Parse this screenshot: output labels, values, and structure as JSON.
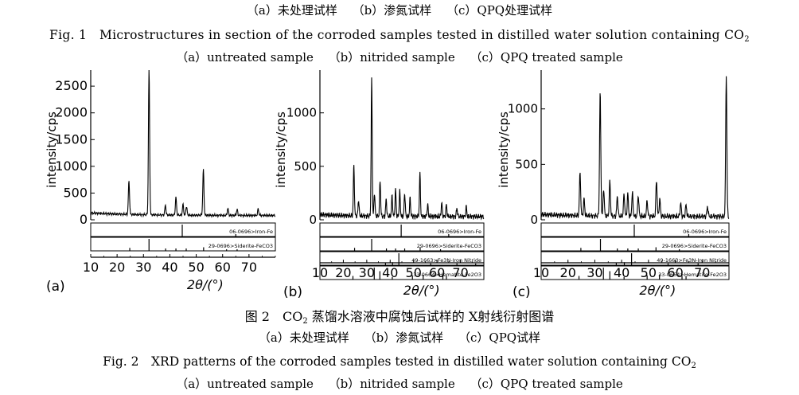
{
  "captions": {
    "fig1_panels_cn": [
      "（a）未处理试样",
      "（b）渗氮试样",
      "（c）QPQ处理试样"
    ],
    "fig1_title": "Fig. 1　Microstructures in section of the corroded samples tested in distilled water solution containing CO",
    "fig1_title_sub": "2",
    "fig1_panels_en": [
      "（a）untreated sample",
      "（b）nitrided sample",
      "（c）QPQ treated sample"
    ],
    "fig2_title_cn": "图 2　CO",
    "fig2_title_cn_sub": "2",
    "fig2_title_cn_rest": " 蒸馏水溶液中腐蚀后试样的 X射线衍射图谱",
    "fig2_panels_cn": [
      "（a）未处理试样",
      "（b）渗氮试样",
      "（c）QPQ试样"
    ],
    "fig2_title": "Fig. 2　XRD patterns of the corroded samples tested in distilled water solution containing CO",
    "fig2_title_sub": "2",
    "fig2_panels_en": [
      "（a）untreated sample",
      "（b）nitrided sample",
      "（c）QPQ treated sample"
    ]
  },
  "chart_data": [
    {
      "type": "line",
      "panel_label": "(a)",
      "xlabel": "2θ/(°)",
      "ylabel": "intensity/cps",
      "xlim": [
        10,
        80
      ],
      "ylim": [
        0,
        2800
      ],
      "xticks": [
        10,
        20,
        30,
        40,
        50,
        60,
        70
      ],
      "yticks": [
        0,
        500,
        1000,
        1500,
        2000,
        2500
      ],
      "series": [
        {
          "baseline": 80,
          "peaks": [
            [
              24.5,
              620
            ],
            [
              32.1,
              2720
            ],
            [
              38.3,
              180
            ],
            [
              42.3,
              330
            ],
            [
              45.0,
              200
            ],
            [
              46.3,
              170
            ],
            [
              52.7,
              850
            ],
            [
              62.0,
              130
            ],
            [
              65.5,
              110
            ],
            [
              73.5,
              120
            ]
          ]
        }
      ],
      "reference_bars": [
        {
          "label": "06-0696>Iron-Fe",
          "lines": [
            [
              44.7,
              1.0
            ],
            [
              65.0,
              0.2
            ]
          ]
        },
        {
          "label": "29-0696>Siderite-FeCO3",
          "lines": [
            [
              24.8,
              0.25
            ],
            [
              32.1,
              1.0
            ],
            [
              38.4,
              0.2
            ],
            [
              42.3,
              0.2
            ],
            [
              46.2,
              0.2
            ],
            [
              52.8,
              0.3
            ],
            [
              61.5,
              0.12
            ],
            [
              65.5,
              0.1
            ]
          ]
        }
      ]
    },
    {
      "type": "line",
      "panel_label": "(b)",
      "xlabel": "2θ/(°)",
      "ylabel": "intensity/cps",
      "xlim": [
        10,
        80
      ],
      "ylim": [
        0,
        1400
      ],
      "xticks": [
        10,
        20,
        30,
        40,
        50,
        60,
        70
      ],
      "yticks": [
        0,
        500,
        1000
      ],
      "series": [
        {
          "baseline": 30,
          "peaks": [
            [
              24.5,
              470
            ],
            [
              26.5,
              150
            ],
            [
              32.1,
              1280
            ],
            [
              33.3,
              220
            ],
            [
              35.7,
              330
            ],
            [
              38.3,
              160
            ],
            [
              40.8,
              190
            ],
            [
              42.3,
              250
            ],
            [
              44.1,
              230
            ],
            [
              46.2,
              220
            ],
            [
              48.5,
              170
            ],
            [
              52.7,
              400
            ],
            [
              56.0,
              110
            ],
            [
              62.0,
              130
            ],
            [
              64.0,
              110
            ],
            [
              68.5,
              80
            ],
            [
              72.5,
              90
            ]
          ]
        }
      ],
      "reference_bars": [
        {
          "label": "06-0696>Iron-Fe",
          "lines": [
            [
              44.7,
              1.0
            ],
            [
              65.0,
              0.2
            ]
          ]
        },
        {
          "label": "29-0696>Siderite-FeCO3",
          "lines": [
            [
              24.8,
              0.25
            ],
            [
              32.1,
              1.0
            ],
            [
              38.4,
              0.2
            ],
            [
              42.3,
              0.2
            ],
            [
              46.2,
              0.2
            ],
            [
              52.8,
              0.3
            ],
            [
              61.5,
              0.12
            ]
          ]
        },
        {
          "label": "49-1663>Fe3N-Iron Nitride",
          "lines": [
            [
              38.0,
              0.2
            ],
            [
              41.0,
              0.25
            ],
            [
              43.7,
              1.0
            ],
            [
              57.3,
              0.15
            ],
            [
              68.5,
              0.15
            ],
            [
              76.5,
              0.12
            ]
          ]
        },
        {
          "label": "33-0664>Hematite-Fe2O3",
          "lines": [
            [
              24.1,
              0.3
            ],
            [
              33.2,
              1.0
            ],
            [
              35.6,
              0.7
            ],
            [
              40.9,
              0.2
            ],
            [
              49.5,
              0.35
            ],
            [
              54.1,
              0.4
            ],
            [
              62.5,
              0.3
            ],
            [
              64.0,
              0.3
            ]
          ]
        }
      ]
    },
    {
      "type": "line",
      "panel_label": "(c)",
      "xlabel": "2θ/(°)",
      "ylabel": "intensity/cps",
      "xlim": [
        10,
        80
      ],
      "ylim": [
        0,
        1350
      ],
      "xticks": [
        10,
        20,
        30,
        40,
        50,
        60,
        70
      ],
      "yticks": [
        0,
        500,
        1000
      ],
      "series": [
        {
          "baseline": 30,
          "peaks": [
            [
              24.5,
              380
            ],
            [
              26.0,
              150
            ],
            [
              32.0,
              1120
            ],
            [
              33.3,
              250
            ],
            [
              35.6,
              310
            ],
            [
              38.4,
              180
            ],
            [
              40.9,
              200
            ],
            [
              42.3,
              200
            ],
            [
              44.0,
              210
            ],
            [
              46.2,
              190
            ],
            [
              49.5,
              140
            ],
            [
              53.0,
              330
            ],
            [
              54.2,
              160
            ],
            [
              62.0,
              120
            ],
            [
              64.0,
              100
            ],
            [
              72.0,
              90
            ],
            [
              79.0,
              1280
            ]
          ]
        }
      ],
      "reference_bars": [
        {
          "label": "06-0696>Iron-Fe",
          "lines": [
            [
              44.7,
              1.0
            ],
            [
              65.0,
              0.2
            ]
          ]
        },
        {
          "label": "29-0696>Siderite-FeCO3",
          "lines": [
            [
              24.8,
              0.25
            ],
            [
              32.1,
              1.0
            ],
            [
              38.4,
              0.2
            ],
            [
              42.3,
              0.2
            ],
            [
              46.2,
              0.2
            ],
            [
              52.8,
              0.3
            ],
            [
              61.5,
              0.12
            ]
          ]
        },
        {
          "label": "49-1663>Fe3N-Iron Nitride",
          "lines": [
            [
              38.0,
              0.2
            ],
            [
              41.0,
              0.25
            ],
            [
              43.7,
              1.0
            ],
            [
              57.3,
              0.15
            ],
            [
              68.5,
              0.15
            ]
          ]
        },
        {
          "label": "33-0664>Hematite-Fe2O3",
          "lines": [
            [
              24.1,
              0.3
            ],
            [
              33.2,
              1.0
            ],
            [
              35.6,
              0.7
            ],
            [
              40.9,
              0.2
            ],
            [
              49.5,
              0.35
            ],
            [
              54.1,
              0.4
            ],
            [
              62.5,
              0.3
            ],
            [
              64.0,
              0.3
            ]
          ]
        }
      ]
    }
  ]
}
